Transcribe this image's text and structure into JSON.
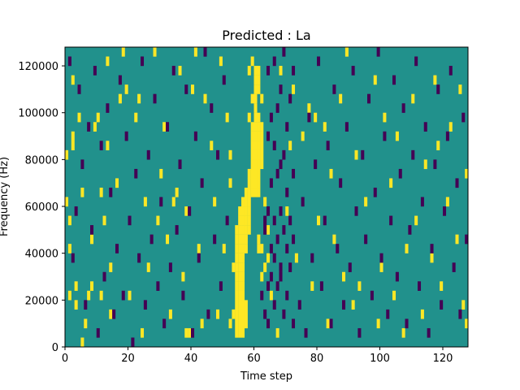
{
  "chart_data": {
    "type": "heatmap",
    "title": "Predicted : La",
    "xlabel": "Time step",
    "ylabel": "Frequency (Hz)",
    "xlim": [
      0,
      128
    ],
    "ylim": [
      0,
      128000
    ],
    "xticks": [
      0,
      20,
      40,
      60,
      80,
      100,
      120
    ],
    "yticks": [
      0,
      20000,
      40000,
      60000,
      80000,
      100000,
      120000
    ],
    "colormap": "viridis",
    "colors": {
      "background": "#21918c",
      "high": "#fde725",
      "low": "#440154"
    },
    "rows": 32,
    "columns": 128,
    "levels": [
      "low",
      "background",
      "high"
    ],
    "cells_description": "3-level heatmap: mostly background level with scattered high (yellow) and low (purple) cells; a dense vertical band of high values around time steps 54-62 spanning roughly 8000-110000 Hz, and low values concentrated near time steps 62-72.",
    "sparse_cells": {
      "high": [
        [
          0,
          15
        ],
        [
          0,
          20
        ],
        [
          1,
          5
        ],
        [
          1,
          13
        ],
        [
          1,
          10
        ],
        [
          2,
          22
        ],
        [
          2,
          28
        ],
        [
          2,
          21
        ],
        [
          3,
          4
        ],
        [
          3,
          6
        ],
        [
          4,
          24
        ],
        [
          5,
          16
        ],
        [
          5,
          0
        ],
        [
          6,
          2
        ],
        [
          7,
          5
        ],
        [
          8,
          11
        ],
        [
          8,
          6
        ],
        [
          9,
          23
        ],
        [
          10,
          24
        ],
        [
          11,
          5
        ],
        [
          11,
          16
        ],
        [
          12,
          13
        ],
        [
          13,
          21
        ],
        [
          13,
          30
        ],
        [
          14,
          3
        ],
        [
          14,
          8
        ],
        [
          16,
          17
        ],
        [
          17,
          26
        ],
        [
          18,
          31
        ],
        [
          19,
          27
        ],
        [
          20,
          5
        ],
        [
          22,
          24
        ],
        [
          23,
          26
        ],
        [
          24,
          1
        ],
        [
          25,
          15
        ],
        [
          26,
          8
        ],
        [
          28,
          31
        ],
        [
          29,
          13
        ],
        [
          30,
          18
        ],
        [
          31,
          23
        ],
        [
          32,
          11
        ],
        [
          33,
          3
        ],
        [
          34,
          15
        ],
        [
          35,
          16
        ],
        [
          36,
          29
        ],
        [
          37,
          7
        ],
        [
          38,
          14
        ],
        [
          38,
          1
        ],
        [
          39,
          1
        ],
        [
          40,
          27
        ],
        [
          41,
          31
        ],
        [
          42,
          10
        ],
        [
          43,
          2
        ],
        [
          44,
          26
        ],
        [
          46,
          21
        ],
        [
          47,
          15
        ],
        [
          48,
          3
        ],
        [
          49,
          30
        ],
        [
          50,
          10
        ],
        [
          51,
          24
        ],
        [
          52,
          2
        ],
        [
          52,
          17
        ],
        [
          52,
          20
        ],
        [
          53,
          3
        ],
        [
          53,
          8
        ],
        [
          54,
          1
        ],
        [
          54,
          2
        ],
        [
          54,
          3
        ],
        [
          54,
          4
        ],
        [
          54,
          5
        ],
        [
          54,
          6
        ],
        [
          54,
          7
        ],
        [
          54,
          8
        ],
        [
          54,
          9
        ],
        [
          54,
          10
        ],
        [
          54,
          11
        ],
        [
          54,
          12
        ],
        [
          55,
          1
        ],
        [
          55,
          2
        ],
        [
          55,
          3
        ],
        [
          55,
          4
        ],
        [
          55,
          5
        ],
        [
          55,
          6
        ],
        [
          55,
          7
        ],
        [
          55,
          8
        ],
        [
          55,
          9
        ],
        [
          55,
          10
        ],
        [
          55,
          11
        ],
        [
          55,
          12
        ],
        [
          55,
          13
        ],
        [
          55,
          14
        ],
        [
          56,
          1
        ],
        [
          56,
          2
        ],
        [
          56,
          3
        ],
        [
          56,
          4
        ],
        [
          56,
          5
        ],
        [
          56,
          6
        ],
        [
          56,
          7
        ],
        [
          56,
          8
        ],
        [
          56,
          9
        ],
        [
          56,
          10
        ],
        [
          56,
          11
        ],
        [
          56,
          12
        ],
        [
          56,
          13
        ],
        [
          56,
          14
        ],
        [
          56,
          15
        ],
        [
          57,
          2
        ],
        [
          57,
          3
        ],
        [
          57,
          4
        ],
        [
          57,
          10
        ],
        [
          57,
          11
        ],
        [
          57,
          12
        ],
        [
          57,
          13
        ],
        [
          57,
          14
        ],
        [
          57,
          15
        ],
        [
          57,
          16
        ],
        [
          58,
          12
        ],
        [
          58,
          13
        ],
        [
          58,
          14
        ],
        [
          58,
          15
        ],
        [
          58,
          16
        ],
        [
          58,
          17
        ],
        [
          58,
          18
        ],
        [
          58,
          24
        ],
        [
          58,
          29
        ],
        [
          59,
          16
        ],
        [
          59,
          17
        ],
        [
          59,
          18
        ],
        [
          59,
          19
        ],
        [
          59,
          20
        ],
        [
          59,
          21
        ],
        [
          59,
          22
        ],
        [
          59,
          23
        ],
        [
          59,
          26
        ],
        [
          59,
          30
        ],
        [
          60,
          16
        ],
        [
          60,
          17
        ],
        [
          60,
          18
        ],
        [
          60,
          19
        ],
        [
          60,
          20
        ],
        [
          60,
          21
        ],
        [
          60,
          22
        ],
        [
          60,
          23
        ],
        [
          60,
          24
        ],
        [
          60,
          25
        ],
        [
          60,
          26
        ],
        [
          60,
          27
        ],
        [
          60,
          28
        ],
        [
          60,
          29
        ],
        [
          61,
          10
        ],
        [
          61,
          11
        ],
        [
          61,
          16
        ],
        [
          61,
          17
        ],
        [
          61,
          18
        ],
        [
          61,
          19
        ],
        [
          61,
          20
        ],
        [
          61,
          21
        ],
        [
          61,
          22
        ],
        [
          61,
          23
        ],
        [
          61,
          24
        ],
        [
          61,
          27
        ],
        [
          61,
          28
        ],
        [
          61,
          29
        ],
        [
          62,
          7
        ],
        [
          62,
          10
        ],
        [
          62,
          19
        ],
        [
          62,
          20
        ],
        [
          62,
          21
        ],
        [
          62,
          22
        ],
        [
          62,
          23
        ],
        [
          62,
          26
        ],
        [
          63,
          8
        ],
        [
          63,
          15
        ],
        [
          64,
          9
        ],
        [
          64,
          12
        ],
        [
          65,
          5
        ],
        [
          67,
          1
        ],
        [
          68,
          29
        ],
        [
          70,
          14
        ],
        [
          71,
          21
        ],
        [
          72,
          27
        ],
        [
          73,
          9
        ],
        [
          75,
          22
        ],
        [
          77,
          25
        ],
        [
          78,
          6
        ],
        [
          79,
          24
        ],
        [
          80,
          13
        ],
        [
          82,
          23
        ],
        [
          83,
          2
        ],
        [
          84,
          18
        ],
        [
          85,
          11
        ],
        [
          87,
          26
        ],
        [
          88,
          7
        ],
        [
          89,
          31
        ],
        [
          91,
          4
        ],
        [
          92,
          20
        ],
        [
          93,
          6
        ],
        [
          95,
          15
        ],
        [
          98,
          28
        ],
        [
          99,
          2
        ],
        [
          100,
          8
        ],
        [
          101,
          24
        ],
        [
          103,
          17
        ],
        [
          104,
          5
        ],
        [
          105,
          22
        ],
        [
          107,
          1
        ],
        [
          108,
          10
        ],
        [
          110,
          26
        ],
        [
          111,
          13
        ],
        [
          113,
          3
        ],
        [
          114,
          19
        ],
        [
          116,
          9
        ],
        [
          117,
          28
        ],
        [
          118,
          21
        ],
        [
          119,
          6
        ],
        [
          121,
          15
        ],
        [
          122,
          23
        ],
        [
          124,
          11
        ],
        [
          125,
          27
        ],
        [
          126,
          4
        ],
        [
          127,
          18
        ],
        [
          127,
          2
        ]
      ],
      "low": [
        [
          1,
          30
        ],
        [
          2,
          9
        ],
        [
          3,
          14
        ],
        [
          4,
          27
        ],
        [
          5,
          19
        ],
        [
          6,
          4
        ],
        [
          7,
          23
        ],
        [
          8,
          12
        ],
        [
          9,
          29
        ],
        [
          10,
          1
        ],
        [
          11,
          21
        ],
        [
          12,
          7
        ],
        [
          13,
          25
        ],
        [
          14,
          16
        ],
        [
          15,
          3
        ],
        [
          16,
          10
        ],
        [
          17,
          28
        ],
        [
          18,
          5
        ],
        [
          19,
          22
        ],
        [
          20,
          13
        ],
        [
          21,
          0
        ],
        [
          22,
          18
        ],
        [
          23,
          9
        ],
        [
          24,
          30
        ],
        [
          25,
          4
        ],
        [
          26,
          20
        ],
        [
          27,
          11
        ],
        [
          28,
          26
        ],
        [
          29,
          6
        ],
        [
          30,
          15
        ],
        [
          31,
          2
        ],
        [
          32,
          23
        ],
        [
          33,
          8
        ],
        [
          34,
          29
        ],
        [
          35,
          12
        ],
        [
          36,
          19
        ],
        [
          37,
          5
        ],
        [
          38,
          27
        ],
        [
          39,
          14
        ],
        [
          40,
          1
        ],
        [
          41,
          22
        ],
        [
          42,
          9
        ],
        [
          43,
          17
        ],
        [
          44,
          31
        ],
        [
          45,
          3
        ],
        [
          46,
          25
        ],
        [
          47,
          11
        ],
        [
          48,
          20
        ],
        [
          49,
          6
        ],
        [
          50,
          28
        ],
        [
          51,
          13
        ],
        [
          62,
          5
        ],
        [
          63,
          3
        ],
        [
          63,
          12
        ],
        [
          63,
          13
        ],
        [
          64,
          2
        ],
        [
          64,
          6
        ],
        [
          64,
          14
        ],
        [
          64,
          22
        ],
        [
          64,
          29
        ],
        [
          65,
          7
        ],
        [
          65,
          10
        ],
        [
          65,
          17
        ],
        [
          65,
          24
        ],
        [
          66,
          4
        ],
        [
          66,
          9
        ],
        [
          66,
          13
        ],
        [
          66,
          21
        ],
        [
          66,
          30
        ],
        [
          67,
          6
        ],
        [
          67,
          11
        ],
        [
          67,
          18
        ],
        [
          67,
          25
        ],
        [
          68,
          7
        ],
        [
          68,
          8
        ],
        [
          68,
          14
        ],
        [
          68,
          19
        ],
        [
          68,
          27
        ],
        [
          69,
          3
        ],
        [
          69,
          12
        ],
        [
          69,
          20
        ],
        [
          69,
          31
        ],
        [
          70,
          5
        ],
        [
          70,
          10
        ],
        [
          70,
          16
        ],
        [
          70,
          23
        ],
        [
          71,
          8
        ],
        [
          71,
          13
        ],
        [
          71,
          26
        ],
        [
          72,
          2
        ],
        [
          72,
          11
        ],
        [
          72,
          18
        ],
        [
          72,
          29
        ],
        [
          74,
          4
        ],
        [
          75,
          15
        ],
        [
          76,
          1
        ],
        [
          77,
          24
        ],
        [
          78,
          9
        ],
        [
          79,
          19
        ],
        [
          80,
          30
        ],
        [
          81,
          6
        ],
        [
          82,
          13
        ],
        [
          83,
          21
        ],
        [
          84,
          2
        ],
        [
          85,
          27
        ],
        [
          86,
          10
        ],
        [
          87,
          17
        ],
        [
          88,
          4
        ],
        [
          89,
          23
        ],
        [
          90,
          8
        ],
        [
          91,
          29
        ],
        [
          92,
          14
        ],
        [
          93,
          1
        ],
        [
          94,
          20
        ],
        [
          95,
          11
        ],
        [
          96,
          26
        ],
        [
          97,
          5
        ],
        [
          98,
          16
        ],
        [
          99,
          31
        ],
        [
          100,
          9
        ],
        [
          101,
          22
        ],
        [
          102,
          3
        ],
        [
          103,
          13
        ],
        [
          104,
          28
        ],
        [
          105,
          7
        ],
        [
          106,
          18
        ],
        [
          107,
          25
        ],
        [
          108,
          2
        ],
        [
          109,
          12
        ],
        [
          110,
          20
        ],
        [
          111,
          30
        ],
        [
          112,
          6
        ],
        [
          113,
          15
        ],
        [
          114,
          23
        ],
        [
          115,
          1
        ],
        [
          116,
          10
        ],
        [
          117,
          19
        ],
        [
          118,
          27
        ],
        [
          119,
          4
        ],
        [
          120,
          14
        ],
        [
          121,
          22
        ],
        [
          122,
          29
        ],
        [
          123,
          8
        ],
        [
          124,
          17
        ],
        [
          125,
          3
        ],
        [
          126,
          24
        ],
        [
          127,
          11
        ]
      ]
    }
  }
}
